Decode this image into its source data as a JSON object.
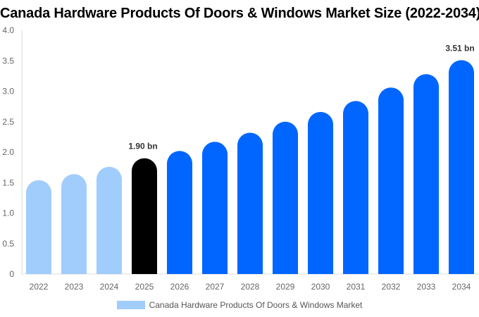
{
  "chart_data": {
    "type": "bar",
    "title": "Canada Hardware Products Of Doors & Windows Market Size (2022-2034)",
    "categories": [
      "2022",
      "2023",
      "2024",
      "2025",
      "2026",
      "2027",
      "2028",
      "2029",
      "2030",
      "2031",
      "2032",
      "2033",
      "2034"
    ],
    "series": [
      {
        "name": "Canada Hardware Products Of Doors & Windows Market",
        "values": [
          1.54,
          1.64,
          1.76,
          1.9,
          2.02,
          2.17,
          2.32,
          2.5,
          2.66,
          2.84,
          3.06,
          3.28,
          3.51
        ]
      }
    ],
    "data_labels": [
      {
        "category": "2025",
        "text": "1.90 bn"
      },
      {
        "category": "2034",
        "text": "3.51 bn"
      }
    ],
    "yticks": [
      "0",
      "0.5",
      "1.0",
      "1.5",
      "2.0",
      "2.5",
      "3.0",
      "3.5",
      "4.0"
    ],
    "ylim": [
      0,
      4.0
    ],
    "xlabel": "",
    "ylabel": "",
    "grid": false,
    "legend": "bottom",
    "colors": {
      "historical": "#a0cdfc",
      "current": "#000000",
      "forecast": "#0066ff"
    }
  }
}
